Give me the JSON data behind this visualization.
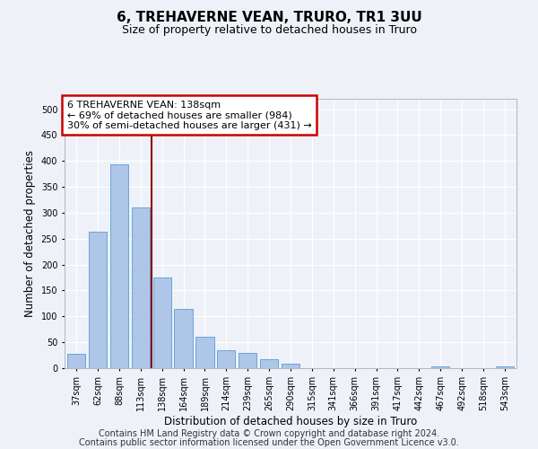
{
  "title": "6, TREHAVERNE VEAN, TRURO, TR1 3UU",
  "subtitle": "Size of property relative to detached houses in Truro",
  "xlabel": "Distribution of detached houses by size in Truro",
  "ylabel": "Number of detached properties",
  "categories": [
    "37sqm",
    "62sqm",
    "88sqm",
    "113sqm",
    "138sqm",
    "164sqm",
    "189sqm",
    "214sqm",
    "239sqm",
    "265sqm",
    "290sqm",
    "315sqm",
    "341sqm",
    "366sqm",
    "391sqm",
    "417sqm",
    "442sqm",
    "467sqm",
    "492sqm",
    "518sqm",
    "543sqm"
  ],
  "values": [
    27,
    263,
    393,
    310,
    175,
    115,
    60,
    35,
    30,
    18,
    8,
    0,
    0,
    0,
    0,
    0,
    0,
    4,
    0,
    0,
    4
  ],
  "bar_color": "#aec6e8",
  "bar_edge_color": "#5b9bd5",
  "vline_color": "#8b0000",
  "vline_x_index": 4,
  "annotation_text": "6 TREHAVERNE VEAN: 138sqm\n← 69% of detached houses are smaller (984)\n30% of semi-detached houses are larger (431) →",
  "annotation_box_color": "#ffffff",
  "annotation_box_edge": "#cc0000",
  "ylim": [
    0,
    520
  ],
  "yticks": [
    0,
    50,
    100,
    150,
    200,
    250,
    300,
    350,
    400,
    450,
    500
  ],
  "footer_line1": "Contains HM Land Registry data © Crown copyright and database right 2024.",
  "footer_line2": "Contains public sector information licensed under the Open Government Licence v3.0.",
  "bg_color": "#eef2f8",
  "grid_color": "#ffffff",
  "title_fontsize": 11,
  "subtitle_fontsize": 9,
  "axis_label_fontsize": 8.5,
  "tick_fontsize": 7,
  "annotation_fontsize": 8,
  "footer_fontsize": 7
}
